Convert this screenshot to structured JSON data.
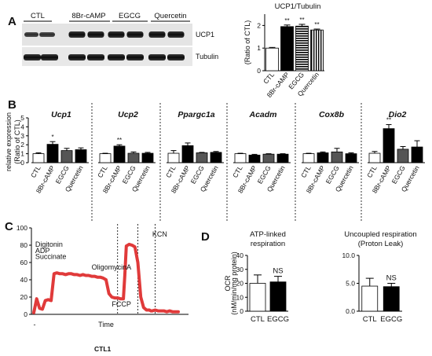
{
  "panels": {
    "a": "A",
    "b": "B",
    "c": "C",
    "d": "D"
  },
  "blot": {
    "lanes": [
      "CTL",
      "8Br-cAMP",
      "EGCG",
      "Quercetin"
    ],
    "bands": [
      "UCP1",
      "Tubulin"
    ]
  },
  "footer_label": "CTL1",
  "chart_data": [
    {
      "id": "ucp1_tubulin",
      "type": "bar",
      "title": "UCP1/Tubulin",
      "ylabel": "(Ratio of CTL)",
      "categories": [
        "CTL",
        "8Br-cAMP",
        "EGCG",
        "Quercetin"
      ],
      "values": [
        1.0,
        1.95,
        1.97,
        1.8
      ],
      "errors": [
        0.03,
        0.07,
        0.08,
        0.04
      ],
      "significance": [
        "",
        "**",
        "**",
        "**"
      ],
      "ylim": [
        0,
        2.5
      ],
      "yticks": [
        0,
        1,
        2
      ],
      "fills": [
        "#ffffff",
        "#000000",
        "hstripe",
        "vstripe"
      ]
    },
    {
      "id": "relative_expression",
      "type": "bar",
      "ylabel": "relative expression",
      "ylabel2": "(Ratio of CTL)",
      "ylim": [
        0,
        5
      ],
      "yticks": [
        0,
        1,
        2,
        3,
        4,
        5
      ],
      "categories": [
        "CTL",
        "8Br-cAMP",
        "EGCG",
        "Quercetin"
      ],
      "colors": [
        "#ffffff",
        "#000000",
        "#555555",
        "#000000"
      ],
      "groups": [
        {
          "gene": "Ucp1",
          "values": [
            1.0,
            2.05,
            1.35,
            1.45
          ],
          "errors": [
            0.1,
            0.3,
            0.25,
            0.2
          ],
          "significance": [
            "",
            "*",
            "",
            ""
          ]
        },
        {
          "gene": "Ucp2",
          "values": [
            1.0,
            1.85,
            1.05,
            1.05
          ],
          "errors": [
            0.05,
            0.15,
            0.15,
            0.1
          ],
          "significance": [
            "",
            "**",
            "",
            ""
          ]
        },
        {
          "gene": "Ppargc1a",
          "values": [
            1.05,
            1.9,
            1.1,
            1.15
          ],
          "errors": [
            0.3,
            0.3,
            0.05,
            0.1
          ],
          "significance": [
            "",
            "",
            "",
            ""
          ]
        },
        {
          "gene": "Acadm",
          "values": [
            1.0,
            0.85,
            0.95,
            0.95
          ],
          "errors": [
            0.05,
            0.08,
            0.05,
            0.05
          ],
          "significance": [
            "",
            "",
            "",
            ""
          ]
        },
        {
          "gene": "Cox8b",
          "values": [
            1.0,
            1.1,
            1.2,
            1.0
          ],
          "errors": [
            0.05,
            0.1,
            0.4,
            0.1
          ],
          "significance": [
            "",
            "",
            "",
            ""
          ]
        },
        {
          "gene": "Dio2",
          "values": [
            1.05,
            3.8,
            1.5,
            1.75
          ],
          "errors": [
            0.2,
            0.45,
            0.3,
            0.7
          ],
          "significance": [
            "",
            "**",
            "",
            ""
          ]
        }
      ]
    },
    {
      "id": "seahorse_trace",
      "type": "line",
      "xlabel": "Time",
      "xtick_label": "-",
      "ylim": [
        0,
        100
      ],
      "yticks": [
        0,
        20,
        40,
        60,
        80,
        100
      ],
      "color": "#e03a3a",
      "x": [
        0,
        2,
        4,
        6,
        8,
        10,
        12,
        14,
        16,
        18,
        20,
        22,
        24,
        26,
        28,
        30,
        32,
        34,
        36,
        38,
        40,
        42,
        44,
        46,
        48,
        50,
        52,
        54,
        56,
        58,
        60,
        62,
        63,
        64,
        66,
        68,
        70,
        72,
        74,
        76,
        78,
        80,
        81,
        82,
        84,
        86,
        88,
        90,
        92,
        94,
        96,
        98,
        100
      ],
      "y": [
        2,
        18,
        7,
        6,
        16,
        17,
        16,
        47,
        48,
        47,
        47,
        46,
        47,
        47,
        46,
        46,
        45,
        46,
        45,
        45,
        44,
        44,
        43,
        43,
        42,
        40,
        24,
        20,
        19,
        19,
        18,
        18,
        45,
        79,
        81,
        80,
        78,
        60,
        20,
        8,
        5,
        5,
        4,
        4,
        5,
        4,
        4,
        4,
        3,
        4,
        3,
        3,
        3
      ],
      "annotations": [
        {
          "text": "Digitonin",
          "x": 1,
          "y": 78
        },
        {
          "text": "ADP",
          "x": 1,
          "y": 71
        },
        {
          "text": "Succinate",
          "x": 1,
          "y": 64
        },
        {
          "text": "OligomycinA",
          "x": 40,
          "y": 52
        },
        {
          "text": "FCCP",
          "x": 54,
          "y": 9
        },
        {
          "text": "KCN",
          "x": 82,
          "y": 90
        }
      ],
      "event_lines": [
        58,
        72,
        84
      ]
    },
    {
      "id": "atp_linked",
      "type": "bar",
      "title": "ATP-linked",
      "title2": "respiration",
      "ylabel": "OCR",
      "ylabel2": "(nM/min/mg protein)",
      "categories": [
        "CTL",
        "EGCG"
      ],
      "values": [
        20,
        21
      ],
      "errors": [
        6,
        4
      ],
      "significance": [
        "",
        "NS"
      ],
      "ylim": [
        0,
        40
      ],
      "yticks": [
        0,
        10,
        20,
        30,
        40
      ],
      "colors": [
        "#ffffff",
        "#000000"
      ]
    },
    {
      "id": "uncoupled",
      "type": "bar",
      "title": "Uncoupled respiration",
      "title2": "(Proton Leak)",
      "categories": [
        "CTL",
        "EGCG"
      ],
      "values": [
        4.5,
        4.4
      ],
      "errors": [
        1.4,
        0.6
      ],
      "significance": [
        "",
        "NS"
      ],
      "ylim": [
        0,
        10
      ],
      "yticks": [
        0.0,
        5.0,
        10.0
      ],
      "colors": [
        "#ffffff",
        "#000000"
      ]
    }
  ]
}
